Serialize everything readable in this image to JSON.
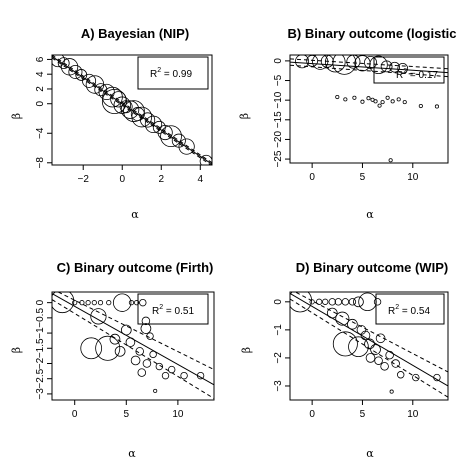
{
  "chart_data": [
    {
      "id": "A",
      "type": "scatter",
      "title": "A) Bayesian (NIP)",
      "xlabel": "α",
      "ylabel": "β",
      "xlim": [
        -3.6,
        4.6
      ],
      "ylim": [
        -8.3,
        6.6
      ],
      "x_ticks": [
        -2,
        0,
        2,
        4
      ],
      "y_ticks": [
        -8,
        -4,
        0,
        2,
        4,
        6
      ],
      "annotation": {
        "r2_label": "R",
        "r2_sup": "2",
        "r2_value": " = 0.99"
      },
      "lines": [
        {
          "style": "solid",
          "x": [
            -3.6,
            4.6
          ],
          "y": [
            6.4,
            -8.2
          ]
        },
        {
          "style": "dashed",
          "x": [
            -3.6,
            4.6
          ],
          "y": [
            6.6,
            -8.0
          ]
        },
        {
          "style": "dashed",
          "x": [
            -3.6,
            4.6
          ],
          "y": [
            6.2,
            -8.4
          ]
        }
      ],
      "points": [
        [
          -3.3,
          5.9,
          1.2
        ],
        [
          -3.0,
          5.5,
          1.0
        ],
        [
          -2.7,
          5.0,
          1.5
        ],
        [
          -2.4,
          4.3,
          1.2
        ],
        [
          -2.1,
          3.9,
          1.0
        ],
        [
          -1.7,
          3.1,
          1.2
        ],
        [
          -1.4,
          2.6,
          1.6
        ],
        [
          -1.1,
          1.9,
          1.1
        ],
        [
          -0.8,
          1.6,
          1.4
        ],
        [
          -0.5,
          0.9,
          1.8
        ],
        [
          -0.4,
          0.3,
          2.2
        ],
        [
          -0.2,
          0.6,
          1.4
        ],
        [
          0.0,
          -0.2,
          1.5
        ],
        [
          0.2,
          -0.4,
          1.1
        ],
        [
          0.4,
          -0.8,
          1.6
        ],
        [
          0.6,
          -1.0,
          1.9
        ],
        [
          0.8,
          -1.4,
          1.2
        ],
        [
          1.0,
          -1.8,
          1.8
        ],
        [
          1.3,
          -2.2,
          1.3
        ],
        [
          1.6,
          -2.8,
          1.5
        ],
        [
          1.9,
          -3.2,
          1.1
        ],
        [
          2.2,
          -3.9,
          1.3
        ],
        [
          2.5,
          -4.4,
          1.9
        ],
        [
          2.9,
          -5.0,
          1.2
        ],
        [
          3.3,
          -5.8,
          1.4
        ],
        [
          4.3,
          -7.8,
          1.1
        ]
      ]
    },
    {
      "id": "B",
      "type": "scatter",
      "title": "B) Binary outcome (logistic",
      "xlabel": "α",
      "ylabel": "β",
      "xlim": [
        -2.2,
        13.5
      ],
      "ylim": [
        -26,
        1.5
      ],
      "x_ticks": [
        0,
        5,
        10
      ],
      "y_ticks": [
        -25,
        -20,
        -15,
        -10,
        -5,
        0
      ],
      "annotation": {
        "r2_label": "R",
        "r2_sup": "2",
        "r2_value": " = 0.17"
      },
      "lines": [
        {
          "style": "solid",
          "x": [
            -2.2,
            13.5
          ],
          "y": [
            -0.3,
            -3.0
          ]
        },
        {
          "style": "dashed",
          "x": [
            -2.2,
            13.5
          ],
          "y": [
            0.5,
            -2.0
          ]
        },
        {
          "style": "dashed",
          "x": [
            -2.2,
            13.5
          ],
          "y": [
            -1.1,
            -4.0
          ]
        }
      ],
      "points": [
        [
          -1.0,
          -0.1,
          1.2
        ],
        [
          0.0,
          0.0,
          1.0
        ],
        [
          0.8,
          -0.2,
          1.4
        ],
        [
          1.5,
          -0.1,
          1.1
        ],
        [
          2.3,
          -0.3,
          1.8
        ],
        [
          3.2,
          -0.5,
          2.1
        ],
        [
          4.1,
          -0.2,
          1.2
        ],
        [
          5.0,
          -0.6,
          1.4
        ],
        [
          5.8,
          -0.4,
          1.1
        ],
        [
          6.6,
          -1.0,
          1.6
        ],
        [
          7.4,
          -1.4,
          1.0
        ],
        [
          8.2,
          -1.6,
          0.9
        ],
        [
          9.0,
          -1.9,
          0.9
        ],
        [
          2.5,
          -9.2,
          0.3
        ],
        [
          3.3,
          -9.8,
          0.3
        ],
        [
          4.2,
          -9.4,
          0.3
        ],
        [
          5.0,
          -10.4,
          0.3
        ],
        [
          5.6,
          -9.5,
          0.3
        ],
        [
          6.0,
          -9.9,
          0.3
        ],
        [
          6.3,
          -10.3,
          0.3
        ],
        [
          6.7,
          -11.4,
          0.3
        ],
        [
          7.0,
          -10.5,
          0.3
        ],
        [
          7.5,
          -9.4,
          0.3
        ],
        [
          8.0,
          -10.3,
          0.3
        ],
        [
          8.6,
          -9.8,
          0.3
        ],
        [
          9.2,
          -10.5,
          0.3
        ],
        [
          10.8,
          -11.5,
          0.3
        ],
        [
          12.4,
          -11.6,
          0.3
        ],
        [
          7.8,
          -25.3,
          0.3
        ]
      ]
    },
    {
      "id": "C",
      "type": "scatter",
      "title": "C) Binary outcome (Firth)",
      "xlabel": "α",
      "ylabel": "β",
      "xlim": [
        -2.2,
        13.5
      ],
      "ylim": [
        -3.2,
        0.35
      ],
      "x_ticks": [
        0,
        5,
        10
      ],
      "y_ticks": [
        -3.0,
        -2.5,
        -2.0,
        -1.5,
        -1.0,
        -0.5,
        0.0
      ],
      "annotation": {
        "r2_label": "R",
        "r2_sup": "2",
        "r2_value": " = 0.51"
      },
      "lines": [
        {
          "style": "solid",
          "x": [
            -2.2,
            13.5
          ],
          "y": [
            0.3,
            -2.7
          ]
        },
        {
          "style": "dashed",
          "x": [
            -2.2,
            13.5
          ],
          "y": [
            0.1,
            -3.15
          ]
        },
        {
          "style": "dashed",
          "x": [
            -2.2,
            13.5
          ],
          "y": [
            0.45,
            -2.2
          ]
        }
      ],
      "points": [
        [
          -1.2,
          0.05,
          2.1
        ],
        [
          0.0,
          0.0,
          0.4
        ],
        [
          0.7,
          0.0,
          0.4
        ],
        [
          1.3,
          0.0,
          0.4
        ],
        [
          1.9,
          0.0,
          0.4
        ],
        [
          2.5,
          0.0,
          0.4
        ],
        [
          3.3,
          0.0,
          0.4
        ],
        [
          4.6,
          0.0,
          1.6
        ],
        [
          5.5,
          0.0,
          0.4
        ],
        [
          6.0,
          0.0,
          0.4
        ],
        [
          6.6,
          0.0,
          0.6
        ],
        [
          1.6,
          -1.5,
          1.9
        ],
        [
          2.3,
          -0.45,
          1.4
        ],
        [
          3.2,
          -1.5,
          2.2
        ],
        [
          3.9,
          -1.2,
          0.9
        ],
        [
          4.4,
          -1.6,
          0.9
        ],
        [
          5.0,
          -0.9,
          0.9
        ],
        [
          5.4,
          -1.3,
          0.8
        ],
        [
          5.9,
          -1.9,
          0.8
        ],
        [
          6.3,
          -1.6,
          0.7
        ],
        [
          6.9,
          -0.6,
          0.7
        ],
        [
          6.9,
          -0.85,
          0.9
        ],
        [
          7.3,
          -1.1,
          0.6
        ],
        [
          6.5,
          -2.3,
          0.7
        ],
        [
          7.0,
          -2.0,
          0.7
        ],
        [
          7.6,
          -1.7,
          0.6
        ],
        [
          8.2,
          -2.1,
          0.6
        ],
        [
          8.8,
          -2.4,
          0.6
        ],
        [
          9.4,
          -2.2,
          0.6
        ],
        [
          10.6,
          -2.4,
          0.6
        ],
        [
          12.2,
          -2.4,
          0.6
        ],
        [
          7.8,
          -2.9,
          0.3
        ]
      ]
    },
    {
      "id": "D",
      "type": "scatter",
      "title": "D) Binary outcome (WIP)",
      "xlabel": "α",
      "ylabel": "β",
      "xlim": [
        -2.2,
        13.5
      ],
      "ylim": [
        -3.5,
        0.35
      ],
      "x_ticks": [
        0,
        5,
        10
      ],
      "y_ticks": [
        -3,
        -2,
        -1,
        0
      ],
      "annotation": {
        "r2_label": "R",
        "r2_sup": "2",
        "r2_value": " = 0.54"
      },
      "lines": [
        {
          "style": "solid",
          "x": [
            -2.2,
            13.5
          ],
          "y": [
            0.3,
            -3.0
          ]
        },
        {
          "style": "dashed",
          "x": [
            -2.2,
            13.5
          ],
          "y": [
            0.1,
            -3.4
          ]
        },
        {
          "style": "dashed",
          "x": [
            -2.2,
            13.5
          ],
          "y": [
            0.45,
            -2.5
          ]
        }
      ],
      "points": [
        [
          -1.2,
          0.05,
          2.1
        ],
        [
          0.0,
          0.0,
          0.4
        ],
        [
          0.7,
          0.0,
          0.5
        ],
        [
          1.3,
          0.0,
          0.5
        ],
        [
          2.0,
          0.0,
          0.6
        ],
        [
          2.6,
          0.0,
          0.6
        ],
        [
          3.3,
          0.0,
          0.6
        ],
        [
          4.0,
          0.0,
          0.6
        ],
        [
          4.6,
          0.0,
          0.9
        ],
        [
          5.5,
          0.0,
          1.6
        ],
        [
          6.5,
          0.0,
          0.6
        ],
        [
          2.0,
          -0.4,
          0.9
        ],
        [
          3.0,
          -0.6,
          1.2
        ],
        [
          4.0,
          -0.8,
          0.9
        ],
        [
          4.9,
          -1.0,
          0.8
        ],
        [
          5.3,
          -1.2,
          0.8
        ],
        [
          3.3,
          -1.5,
          2.2
        ],
        [
          4.6,
          -1.6,
          1.8
        ],
        [
          5.7,
          -1.5,
          0.9
        ],
        [
          6.3,
          -1.7,
          0.9
        ],
        [
          6.8,
          -1.3,
          0.8
        ],
        [
          5.8,
          -2.0,
          0.8
        ],
        [
          6.6,
          -2.1,
          0.7
        ],
        [
          7.2,
          -2.3,
          0.7
        ],
        [
          7.7,
          -1.9,
          0.7
        ],
        [
          8.3,
          -2.2,
          0.7
        ],
        [
          8.8,
          -2.6,
          0.6
        ],
        [
          10.3,
          -2.7,
          0.6
        ],
        [
          12.4,
          -2.7,
          0.6
        ],
        [
          7.9,
          -3.2,
          0.3
        ]
      ]
    }
  ]
}
